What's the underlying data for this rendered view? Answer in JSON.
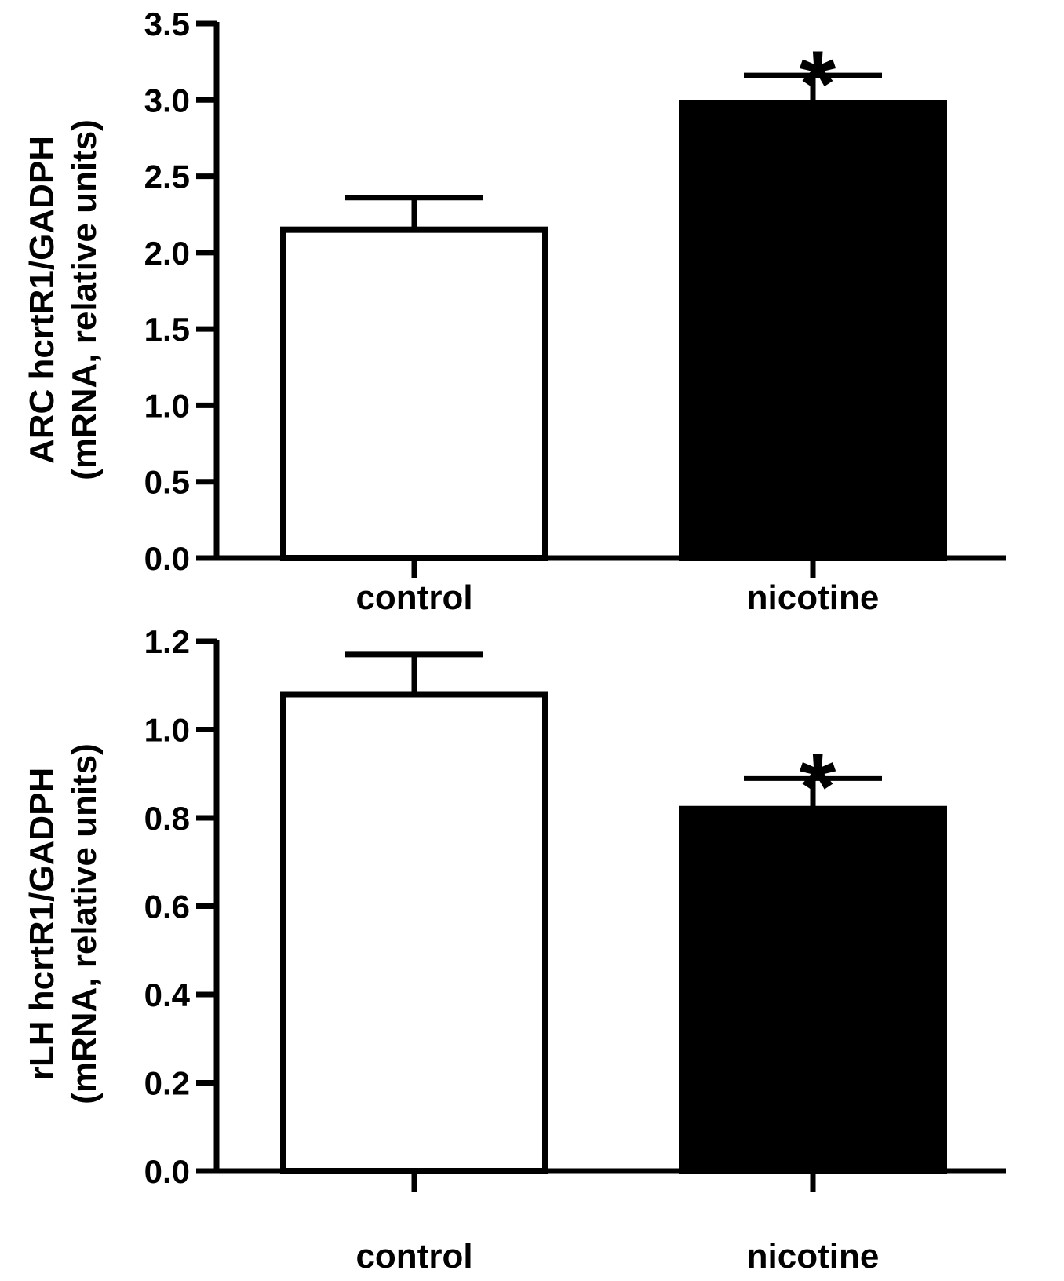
{
  "chart_data": [
    {
      "type": "bar",
      "categories": [
        "control",
        "nicotine"
      ],
      "values": [
        2.15,
        2.98
      ],
      "errors": [
        0.21,
        0.18
      ],
      "bar_colors": [
        "#ffffff",
        "#000000"
      ],
      "significance": [
        "",
        "*"
      ],
      "ylabel_line1": "ARC hcrtR1/GADPH",
      "ylabel_line2": "(mRNA, relative units)",
      "ylim": [
        0,
        3.5
      ],
      "yticks": [
        "0.0",
        "0.5",
        "1.0",
        "1.5",
        "2.0",
        "2.5",
        "3.0",
        "3.5"
      ],
      "grid": false
    },
    {
      "type": "bar",
      "categories": [
        "control",
        "nicotine"
      ],
      "values": [
        1.08,
        0.82
      ],
      "errors": [
        0.09,
        0.07
      ],
      "bar_colors": [
        "#ffffff",
        "#000000"
      ],
      "significance": [
        "",
        "*"
      ],
      "ylabel_line1": "rLH hcrtR1/GADPH",
      "ylabel_line2": "(mRNA, relative units)",
      "ylim": [
        0,
        1.2
      ],
      "yticks": [
        "0.0",
        "0.2",
        "0.4",
        "0.6",
        "0.8",
        "1.0",
        "1.2"
      ],
      "grid": false
    }
  ]
}
